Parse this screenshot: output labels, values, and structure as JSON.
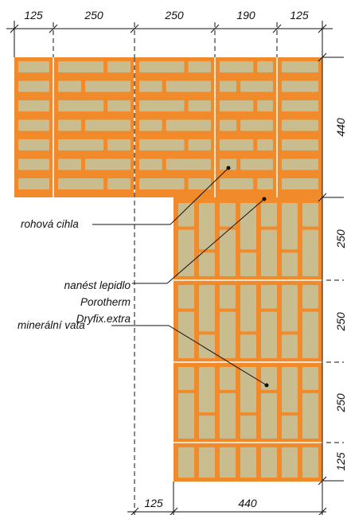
{
  "dimensions": {
    "top": [
      "125",
      "250",
      "250",
      "190",
      "125"
    ],
    "right": [
      "440",
      "250",
      "250",
      "250",
      "125"
    ],
    "bottom": [
      "125",
      "440"
    ]
  },
  "labels": {
    "corner_brick": "rohová cihla",
    "adhesive_line1": "nanést lepidlo",
    "adhesive_line2": "Porotherm",
    "adhesive_line3": "Dryfix.extra",
    "mineral_wool": "minerální vata"
  },
  "colors": {
    "brick": "#f08a2a",
    "cavity": "#c9bd90",
    "line": "#111111",
    "seam": "#ffffff"
  }
}
